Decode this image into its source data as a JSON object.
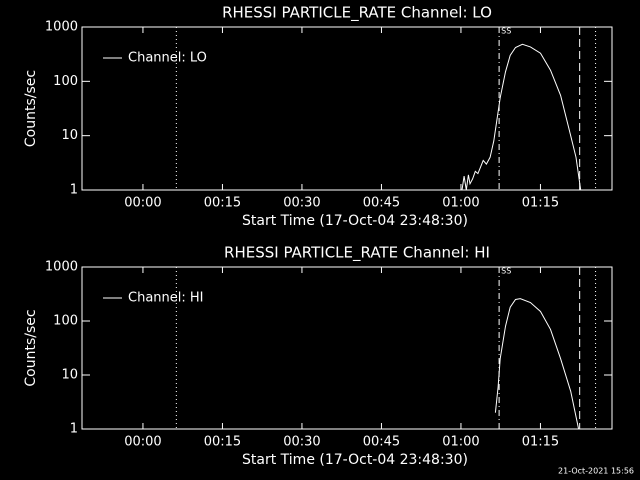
{
  "chart_data": [
    {
      "type": "line",
      "title": "RHESSI PARTICLE_RATE Channel: LO",
      "x_label": "Start Time (17-Oct-04 23:48:30)",
      "y_label": "Counts/sec",
      "x": [
        60.2,
        60.6,
        61.0,
        61.4,
        61.7,
        62.2,
        62.7,
        63.2,
        63.6,
        64.2,
        64.8,
        65.5,
        66.2,
        66.8,
        67.4,
        68.4,
        69.3,
        70.3,
        71.6,
        73.1,
        75.0,
        76.9,
        78.8,
        80.7,
        81.7,
        82.6
      ],
      "series": [
        {
          "name": "Channel: LO",
          "color": "#ffffff",
          "values": [
            1,
            1.8,
            1,
            1.9,
            1.3,
            1.6,
            2.2,
            2,
            2.5,
            3.5,
            3,
            4,
            8,
            20,
            50,
            150,
            300,
            420,
            480,
            430,
            330,
            160,
            55,
            10,
            4,
            1
          ]
        }
      ],
      "xlim": [
        -11.5,
        88.5
      ],
      "xticks": [
        {
          "value": 0,
          "label": "00:00"
        },
        {
          "value": 15,
          "label": "00:15"
        },
        {
          "value": 30,
          "label": "00:30"
        },
        {
          "value": 45,
          "label": "00:45"
        },
        {
          "value": 60,
          "label": "01:00"
        },
        {
          "value": 75,
          "label": "01:15"
        }
      ],
      "ylim": [
        1,
        1000
      ],
      "yticks": [
        1,
        10,
        100,
        1000
      ],
      "log_y": true,
      "vlines": [
        {
          "x": 6.3,
          "style": "dotted"
        },
        {
          "x": 67.2,
          "style": "dashdot"
        },
        {
          "x": 82.4,
          "style": "dashed"
        },
        {
          "x": 85.4,
          "style": "dotted"
        }
      ],
      "annotation": {
        "text": "SS",
        "x": 67.2
      },
      "legend": "upper left"
    },
    {
      "type": "line",
      "title": "RHESSI PARTICLE_RATE Channel: HI",
      "x_label": "Start Time (17-Oct-04 23:48:30)",
      "y_label": "Counts/sec",
      "x": [
        66.5,
        67.0,
        67.4,
        68.4,
        69.3,
        70.3,
        71.2,
        73.1,
        75.0,
        76.9,
        78.8,
        80.7,
        82.2
      ],
      "series": [
        {
          "name": "Channel: HI",
          "color": "#ffffff",
          "values": [
            2,
            6,
            20,
            80,
            180,
            250,
            260,
            220,
            150,
            70,
            20,
            5,
            1
          ]
        }
      ],
      "xlim": [
        -11.5,
        88.5
      ],
      "xticks": [
        {
          "value": 0,
          "label": "00:00"
        },
        {
          "value": 15,
          "label": "00:15"
        },
        {
          "value": 30,
          "label": "00:30"
        },
        {
          "value": 45,
          "label": "00:45"
        },
        {
          "value": 60,
          "label": "01:00"
        },
        {
          "value": 75,
          "label": "01:15"
        }
      ],
      "ylim": [
        1,
        1000
      ],
      "yticks": [
        1,
        10,
        100,
        1000
      ],
      "log_y": true,
      "vlines": [
        {
          "x": 6.3,
          "style": "dotted"
        },
        {
          "x": 67.2,
          "style": "dashdot"
        },
        {
          "x": 82.4,
          "style": "dashed"
        },
        {
          "x": 85.4,
          "style": "dotted"
        }
      ],
      "annotation": {
        "text": "SS",
        "x": 67.2
      },
      "legend": "upper left"
    }
  ],
  "footer": "21-Oct-2021 15:56"
}
